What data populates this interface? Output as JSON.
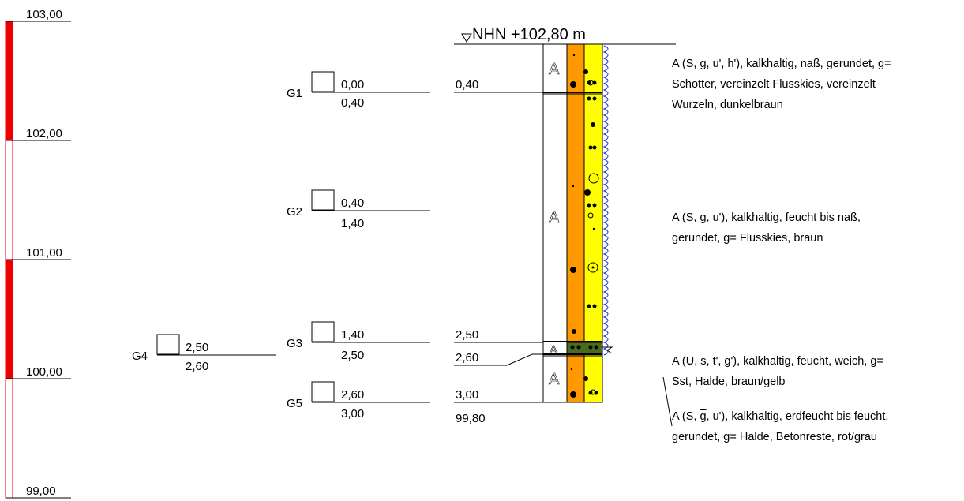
{
  "scale": {
    "labels": [
      "103,00",
      "102,00",
      "101,00",
      "100,00",
      "99,00"
    ],
    "segments": [
      {
        "from": 103.0,
        "to": 102.0,
        "style": "filled"
      },
      {
        "from": 102.0,
        "to": 101.0,
        "style": "hollow"
      },
      {
        "from": 101.0,
        "to": 100.0,
        "style": "filled"
      },
      {
        "from": 100.0,
        "to": 99.0,
        "style": "hollow"
      }
    ],
    "color": "#ee0000"
  },
  "water_level": {
    "label": "NHN +102,80 m",
    "symbol": "▽"
  },
  "layers": [
    {
      "code": "A",
      "top": 0.0,
      "bottom": 0.4,
      "bottom_label": "0,40"
    },
    {
      "code": "A",
      "top": 0.4,
      "bottom": 2.5,
      "bottom_label": "2,50"
    },
    {
      "code": "A",
      "top": 2.5,
      "bottom": 2.6,
      "bottom_label": "2,60"
    },
    {
      "code": "A",
      "top": 2.6,
      "bottom": 3.0,
      "bottom_label": "3,00"
    }
  ],
  "final_elevation": "99,80",
  "samples": [
    {
      "id": "G1",
      "from": "0,00",
      "to": "0,40",
      "depth": 0.0
    },
    {
      "id": "G2",
      "from": "0,40",
      "to": "1,40",
      "depth": 0.4
    },
    {
      "id": "G3",
      "from": "1,40",
      "to": "2,50",
      "depth": 1.4
    },
    {
      "id": "G4",
      "from": "2,50",
      "to": "2,60",
      "depth": 2.5
    },
    {
      "id": "G5",
      "from": "2,60",
      "to": "3,00",
      "depth": 2.6
    }
  ],
  "descriptions": [
    {
      "line1": "A (S, g, u', h'), kalkhaltig, naß, gerundet, g=",
      "line2": "Schotter, vereinzelt Flusskies, vereinzelt",
      "line3": "Wurzeln, dunkelbraun"
    },
    {
      "line1": "A (S, g, u'), kalkhaltig, feucht bis naß,",
      "line2": "gerundet, g= Flusskies, braun",
      "line3": ""
    },
    {
      "line1": "A (U, s, t', g'), kalkhaltig, feucht, weich, g=",
      "line2": "Sst, Halde, braun/gelb",
      "line3": ""
    },
    {
      "line1a": "A (S, ",
      "line1b": "g",
      "line1c": ", u'), kalkhaltig, erdfeucht bis feucht,",
      "line2": "gerundet, g= Halde, Betonreste, rot/grau"
    }
  ],
  "colors": {
    "orange": "#ff9900",
    "yellow": "#ffff00",
    "scale_red": "#ee0000",
    "water_blue": "#2233cc"
  }
}
